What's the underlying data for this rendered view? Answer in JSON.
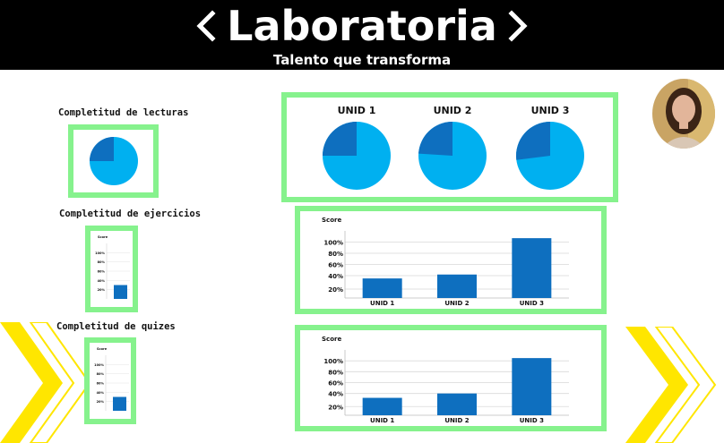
{
  "header": {
    "logo_text": "Laboratoria",
    "tagline": "Talento que transforma"
  },
  "colors": {
    "frame_green": "#86f28d",
    "pie_light": "#00b0f0",
    "pie_dark": "#0e6fbf",
    "bar_blue": "#0e6fbf",
    "chevron_yellow": "#ffe600"
  },
  "sections": {
    "lecturas": {
      "label": "Completitud de lecturas",
      "pie_fraction_dark": 0.25
    },
    "ejercicios": {
      "label": "Completitud de ejercicios"
    },
    "quizes": {
      "label": "Completitud de quizes"
    }
  },
  "units": [
    {
      "label": "UNID 1",
      "pie_fraction_dark": 0.25
    },
    {
      "label": "UNID 2",
      "pie_fraction_dark": 0.24
    },
    {
      "label": "UNID 3",
      "pie_fraction_dark": 0.27
    }
  ],
  "chart_data": [
    {
      "type": "pie",
      "title": "",
      "slices": [
        0.25,
        0.75
      ]
    },
    {
      "type": "bar",
      "title": "Score",
      "categories": [
        "UNID 1",
        "UNID 2",
        "UNID 3"
      ],
      "values": [
        35,
        42,
        107
      ],
      "yticks": [
        "100%",
        "80%",
        "60%",
        "40%",
        "20%"
      ],
      "ylim": [
        0,
        120
      ]
    },
    {
      "type": "bar",
      "title": "Score",
      "categories": [
        "UNID 1",
        "UNID 2",
        "UNID 3"
      ],
      "values": [
        32,
        40,
        105
      ],
      "yticks": [
        "100%",
        "80%",
        "60%",
        "40%",
        "20%"
      ],
      "ylim": [
        0,
        120
      ]
    },
    {
      "type": "bar",
      "title": "Score",
      "categories": [
        "",
        "",
        ""
      ],
      "values": [
        0,
        0,
        30
      ],
      "yticks": [
        "100%",
        "80%",
        "60%",
        "40%",
        "20%"
      ],
      "ylim": [
        0,
        120
      ]
    },
    {
      "type": "bar",
      "title": "Score",
      "categories": [
        "",
        "",
        ""
      ],
      "values": [
        0,
        0,
        30
      ],
      "yticks": [
        "100%",
        "80%",
        "60%",
        "40%",
        "20%"
      ],
      "ylim": [
        0,
        120
      ]
    }
  ]
}
